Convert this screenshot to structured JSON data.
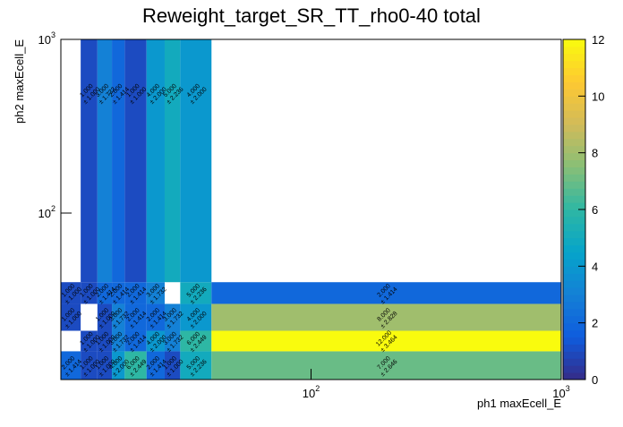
{
  "chart_data": {
    "type": "heatmap",
    "title": "Reweight_target_SR_TT_rho0-40 total",
    "x_label": "ph1 maxEcell_E",
    "y_label": "ph2 maxEcell_E",
    "xbins": [
      10,
      12,
      14,
      16,
      18,
      22,
      26,
      30,
      40,
      1000
    ],
    "ybins": [
      11,
      16,
      21,
      30,
      40,
      1000
    ],
    "xlim": [
      10,
      1000
    ],
    "ylim": [
      11,
      1000
    ],
    "xlog": true,
    "ylog": true,
    "xticks": [
      {
        "value": 100,
        "label": "10",
        "exponent": "2"
      },
      {
        "value": 1000,
        "label": "10",
        "exponent": "3"
      }
    ],
    "yticks": [
      {
        "value": 100,
        "label": "10",
        "exponent": "2"
      },
      {
        "value": 1000,
        "label": "10",
        "exponent": "3"
      }
    ],
    "zlim": [
      0,
      12
    ],
    "zticks": [
      0,
      2,
      4,
      6,
      8,
      10,
      12
    ],
    "values": [
      [
        2,
        1,
        1,
        4,
        6,
        2,
        1,
        5,
        7
      ],
      [
        null,
        1,
        1,
        3,
        2,
        4,
        3,
        6,
        12
      ],
      [
        1,
        null,
        1,
        3,
        2,
        2,
        3,
        4,
        8
      ],
      [
        1,
        1,
        2,
        2,
        2,
        3,
        null,
        5,
        2
      ],
      [
        null,
        1,
        3,
        2,
        1,
        4,
        5,
        4,
        null
      ]
    ],
    "value_labels": [
      [
        "2.000",
        "1.000",
        "1.000",
        "4.000",
        "6.000",
        "2.000",
        "1.000",
        "5.000",
        "7.000"
      ],
      [
        null,
        "1.000",
        "1.000",
        "3.000",
        "2.000",
        "4.000",
        "3.000",
        "6.000",
        "12.000"
      ],
      [
        "1.000",
        null,
        "1.000",
        "3.000",
        "2.000",
        "2.000",
        "3.000",
        "4.000",
        "8.000"
      ],
      [
        "1.000",
        "1.000",
        "2.000",
        "2.000",
        "2.000",
        "3.000",
        null,
        "5.000",
        "2.000"
      ],
      [
        null,
        "1.000",
        "3.000",
        "2.000",
        "1.000",
        "4.000",
        "5.000",
        "4.000",
        null
      ]
    ],
    "error_labels": [
      [
        "± 1.414",
        "± 1.000",
        "± 1.000",
        "± 2.000",
        "± 2.449",
        "± 1.414",
        "± 1.000",
        "± 2.236",
        "± 2.646"
      ],
      [
        null,
        "± 1.000",
        "± 1.000",
        "± 1.732",
        "± 1.414",
        "± 2.000",
        "± 1.732",
        "± 2.449",
        "± 3.464"
      ],
      [
        "± 1.000",
        null,
        "± 1.000",
        "± 1.732",
        "± 1.414",
        "± 1.414",
        "± 1.732",
        "± 2.000",
        "± 2.828"
      ],
      [
        "± 1.000",
        "± 1.000",
        "± 1.414",
        "± 1.414",
        "± 1.414",
        "± 1.732",
        null,
        "± 2.236",
        "± 1.414"
      ],
      [
        null,
        "± 1.000",
        "± 1.732",
        "± 1.414",
        "± 1.000",
        "± 2.000",
        "± 2.236",
        "± 2.000",
        null
      ]
    ]
  }
}
